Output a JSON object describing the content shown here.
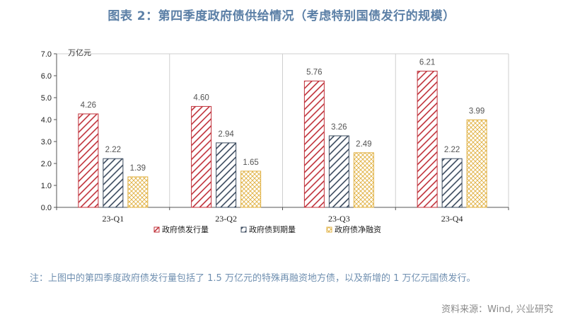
{
  "title": "图表 2：第四季度政府债供给情况（考虑特别国债发行的规模）",
  "note": "注：上图中的第四季度政府债发行量包括了 1.5 万亿元的特殊再融资地方债，以及新增的 1 万亿元国债发行。",
  "source": "资料来源：Wind, 兴业研究",
  "colors": {
    "issuance": "#c0313a",
    "maturity": "#3a4a5e",
    "net": "#e0b040",
    "axis": "#888888",
    "grid": "#cfcfcf"
  },
  "chart_data": {
    "type": "bar",
    "categories": [
      "23-Q1",
      "23-Q2",
      "23-Q3",
      "23-Q4"
    ],
    "series": [
      {
        "name": "政府债发行量",
        "values": [
          4.26,
          4.6,
          5.76,
          6.21
        ],
        "color": "#c0313a",
        "pattern": "diagonal"
      },
      {
        "name": "政府债到期量",
        "values": [
          2.22,
          2.94,
          3.26,
          2.22
        ],
        "color": "#3a4a5e",
        "pattern": "diagonal"
      },
      {
        "name": "政府债净融资",
        "values": [
          1.39,
          1.65,
          2.49,
          3.99
        ],
        "color": "#e0b040",
        "pattern": "crosshatch"
      }
    ],
    "ylabel": "万亿元",
    "ylim": [
      0,
      7
    ],
    "yticks": [
      "0.0",
      "1.0",
      "2.0",
      "3.0",
      "4.0",
      "5.0",
      "6.0",
      "7.0"
    ],
    "legend_position": "bottom",
    "grid": false
  }
}
